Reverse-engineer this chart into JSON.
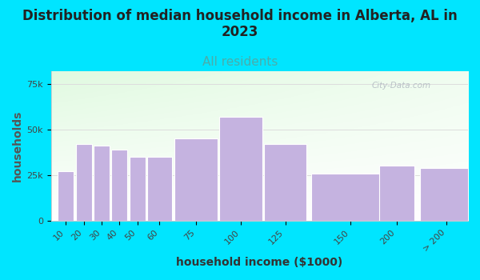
{
  "title": "Distribution of median household income in Alberta, AL in\n2023",
  "subtitle": "All residents",
  "xlabel": "household income ($1000)",
  "ylabel": "households",
  "categories": [
    "10",
    "20",
    "30",
    "40",
    "50",
    "60",
    "75",
    "100",
    "125",
    "150",
    "200",
    "> 200"
  ],
  "values": [
    27000,
    42000,
    41000,
    39000,
    35000,
    35000,
    45000,
    57000,
    42000,
    26000,
    30000,
    29000
  ],
  "bar_widths": [
    1,
    1,
    1,
    1,
    1,
    1,
    1,
    1,
    1,
    2.5,
    2.5,
    2.5
  ],
  "bar_lefts": [
    9.5,
    14.5,
    24.5,
    34.5,
    44.5,
    54.5,
    64.5,
    87.5,
    112.5,
    137.5,
    175,
    212.5
  ],
  "bar_color": "#c5b3e0",
  "bar_edge_color": "#ffffff",
  "background_color": "#00e5ff",
  "plot_bg_top_left": "#dff2e0",
  "plot_bg_bottom_right": "#f8f8f8",
  "yticks": [
    0,
    25000,
    50000,
    75000
  ],
  "ytick_labels": [
    "0",
    "25k",
    "50k",
    "75k"
  ],
  "ylim": [
    0,
    82000
  ],
  "title_fontsize": 12,
  "subtitle_fontsize": 11,
  "subtitle_color": "#4aadab",
  "axis_label_fontsize": 10,
  "tick_fontsize": 8,
  "title_color": "#222222",
  "watermark_text": "City-Data.com",
  "watermark_color": "#b0b8c0",
  "ylabel_color": "#555555",
  "grid_color": "#dddddd"
}
